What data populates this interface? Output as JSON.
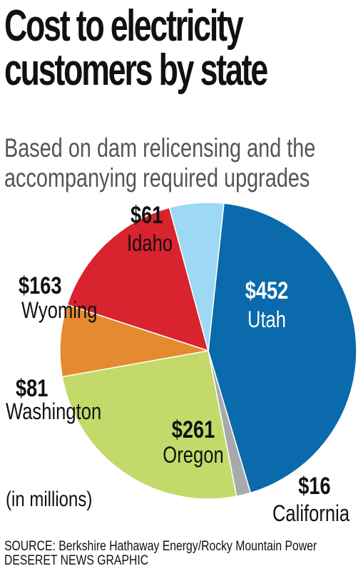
{
  "header": {
    "title_line1": "Cost to electricity",
    "title_line2": "customers by state",
    "subtitle_line1": "Based on dam relicensing and the",
    "subtitle_line2": "accompanying required upgrades"
  },
  "unit_note": "(in millions)",
  "footer": {
    "source": "SOURCE: Berkshire Hathaway Energy/Rocky Mountain Power",
    "credit": "DESERET NEWS GRAPHIC"
  },
  "chart_data": {
    "type": "pie",
    "slices": [
      {
        "label": "Utah",
        "value": 452,
        "value_label": "$452",
        "color": "#0a6aab"
      },
      {
        "label": "California",
        "value": 16,
        "value_label": "$16",
        "color": "#a7a9ac"
      },
      {
        "label": "Oregon",
        "value": 261,
        "value_label": "$261",
        "color": "#c3d96a"
      },
      {
        "label": "Washington",
        "value": 81,
        "value_label": "$81",
        "color": "#e48b2f"
      },
      {
        "label": "Wyoming",
        "value": 163,
        "value_label": "$163",
        "color": "#d9232e"
      },
      {
        "label": "Idaho",
        "value": 61,
        "value_label": "$61",
        "color": "#9dd8f4"
      }
    ]
  }
}
